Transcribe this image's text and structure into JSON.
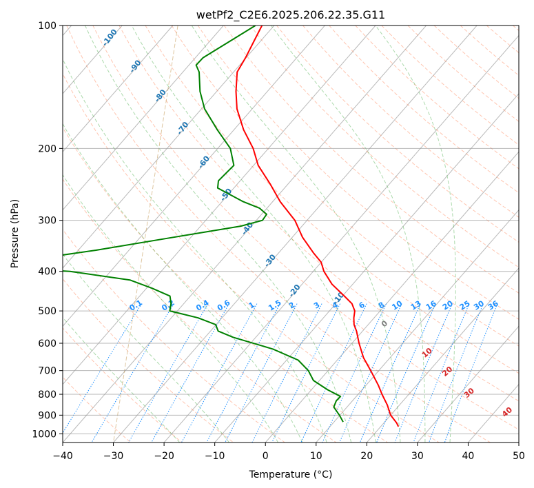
{
  "chart_data": {
    "type": "line",
    "title": "wetPf2_C2E6.2025.206.22.35.G11",
    "xlabel": "Temperature (°C)",
    "ylabel": "Pressure (hPa)",
    "xlim": [
      -40,
      50
    ],
    "ylim": [
      1050,
      100
    ],
    "yscale": "log",
    "grid": true,
    "x_ticks": [
      -40,
      -30,
      -20,
      -10,
      0,
      10,
      20,
      30,
      40,
      50
    ],
    "x_tick_labels": [
      "−40",
      "−30",
      "−20",
      "−10",
      "0",
      "10",
      "20",
      "30",
      "40",
      "50"
    ],
    "y_ticks": [
      100,
      200,
      300,
      400,
      500,
      600,
      700,
      800,
      900,
      1000
    ],
    "y_tick_labels": [
      "100",
      "200",
      "300",
      "400",
      "500",
      "600",
      "700",
      "800",
      "900",
      "1000"
    ],
    "series": [
      {
        "role": "temperature",
        "color": "#ff0000",
        "points": [
          {
            "p": 100,
            "t": -72.4
          },
          {
            "p": 110,
            "t": -71.2
          },
          {
            "p": 120,
            "t": -70.1
          },
          {
            "p": 130,
            "t": -69.3
          },
          {
            "p": 145,
            "t": -66.2
          },
          {
            "p": 160,
            "t": -63.0
          },
          {
            "p": 180,
            "t": -58.1
          },
          {
            "p": 200,
            "t": -53.0
          },
          {
            "p": 220,
            "t": -49.1
          },
          {
            "p": 245,
            "t": -43.4
          },
          {
            "p": 270,
            "t": -38.5
          },
          {
            "p": 300,
            "t": -32.4
          },
          {
            "p": 330,
            "t": -28.0
          },
          {
            "p": 360,
            "t": -23.2
          },
          {
            "p": 380,
            "t": -20.0
          },
          {
            "p": 400,
            "t": -17.9
          },
          {
            "p": 430,
            "t": -14.1
          },
          {
            "p": 460,
            "t": -9.6
          },
          {
            "p": 480,
            "t": -6.8
          },
          {
            "p": 500,
            "t": -5.0
          },
          {
            "p": 520,
            "t": -4.0
          },
          {
            "p": 540,
            "t": -2.8
          },
          {
            "p": 560,
            "t": -1.2
          },
          {
            "p": 600,
            "t": 1.4
          },
          {
            "p": 650,
            "t": 4.7
          },
          {
            "p": 700,
            "t": 8.4
          },
          {
            "p": 760,
            "t": 12.4
          },
          {
            "p": 800,
            "t": 14.7
          },
          {
            "p": 850,
            "t": 17.6
          },
          {
            "p": 900,
            "t": 20.0
          },
          {
            "p": 940,
            "t": 22.5
          },
          {
            "p": 960,
            "t": 23.5
          }
        ]
      },
      {
        "role": "dewpoint",
        "color": "#008000",
        "points": [
          {
            "p": 100,
            "t": -73.7
          },
          {
            "p": 110,
            "t": -76.2
          },
          {
            "p": 120,
            "t": -78.5
          },
          {
            "p": 125,
            "t": -78.6
          },
          {
            "p": 130,
            "t": -76.8
          },
          {
            "p": 145,
            "t": -73.3
          },
          {
            "p": 160,
            "t": -69.4
          },
          {
            "p": 180,
            "t": -63.3
          },
          {
            "p": 200,
            "t": -57.5
          },
          {
            "p": 220,
            "t": -53.9
          },
          {
            "p": 240,
            "t": -54.3
          },
          {
            "p": 250,
            "t": -53.2
          },
          {
            "p": 270,
            "t": -45.8
          },
          {
            "p": 280,
            "t": -41.5
          },
          {
            "p": 290,
            "t": -39.0
          },
          {
            "p": 300,
            "t": -38.8
          },
          {
            "p": 310,
            "t": -42.1
          },
          {
            "p": 330,
            "t": -53.4
          },
          {
            "p": 355,
            "t": -66.5
          },
          {
            "p": 375,
            "t": -78.2
          },
          {
            "p": 385,
            "t": -82.4
          },
          {
            "p": 392,
            "t": -80.5
          },
          {
            "p": 400,
            "t": -68.0
          },
          {
            "p": 420,
            "t": -54.7
          },
          {
            "p": 440,
            "t": -48.9
          },
          {
            "p": 460,
            "t": -44.0
          },
          {
            "p": 480,
            "t": -42.5
          },
          {
            "p": 500,
            "t": -41.5
          },
          {
            "p": 520,
            "t": -34.7
          },
          {
            "p": 540,
            "t": -30.1
          },
          {
            "p": 560,
            "t": -28.5
          },
          {
            "p": 580,
            "t": -24.5
          },
          {
            "p": 620,
            "t": -14.6
          },
          {
            "p": 660,
            "t": -7.7
          },
          {
            "p": 700,
            "t": -3.9
          },
          {
            "p": 740,
            "t": -1.2
          },
          {
            "p": 780,
            "t": 3.2
          },
          {
            "p": 810,
            "t": 6.9
          },
          {
            "p": 830,
            "t": 6.8
          },
          {
            "p": 860,
            "t": 7.4
          },
          {
            "p": 900,
            "t": 9.9
          },
          {
            "p": 935,
            "t": 11.8
          }
        ]
      }
    ],
    "dry_adiabats": [
      -30,
      -20,
      -10,
      0,
      10,
      20,
      30,
      40,
      50,
      60,
      70,
      80,
      90,
      100,
      110,
      120,
      130,
      140,
      150,
      160,
      170,
      180,
      190,
      200,
      210,
      220,
      230,
      240,
      250
    ],
    "moist_adiabats": [
      -20,
      -10,
      0,
      5,
      10,
      15,
      20,
      25,
      30,
      35
    ],
    "mixing_ratio_lines": [
      0.1,
      0.2,
      0.4,
      0.6,
      1,
      1.5,
      2,
      3,
      4,
      6,
      8,
      10,
      13,
      16,
      20,
      25,
      30,
      36
    ],
    "mixing_ratio_labels": [
      "0.1",
      "0.2",
      "0.4",
      "0.6",
      "1",
      "1.5",
      "2",
      "3",
      "4",
      "6",
      "8",
      "10",
      "13",
      "16",
      "20",
      "25",
      "30",
      "36"
    ],
    "dry_adiabat_labels": [
      "-100",
      "-90",
      "-80",
      "-70",
      "-60",
      "-50",
      "-40",
      "-30",
      "-20",
      "-10"
    ],
    "wet_bulb_labels": [
      "0",
      "10",
      "20",
      "30",
      "40"
    ],
    "colors": {
      "temperature": "#ff0000",
      "dewpoint": "#008000",
      "isotherm": "#808080",
      "dry_adiabat": "#ff7f50",
      "moist_adiabat": "#2ca02c",
      "mixing_ratio": "#1e90ff",
      "dry_adiabat_label": "#1f77b4",
      "wet_bulb_label": "#d62728",
      "freezing_label": "#808080",
      "ice_curve": "#c8a060"
    }
  }
}
